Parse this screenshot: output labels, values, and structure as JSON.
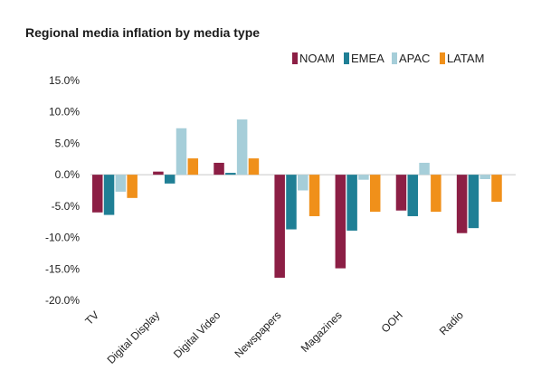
{
  "chart_data": {
    "type": "bar",
    "title": "Regional media inflation by media type",
    "categories": [
      "TV",
      "Digital Display",
      "Digital Video",
      "Newspapers",
      "Magazines",
      "OOH",
      "Radio"
    ],
    "series": [
      {
        "name": "NOAM",
        "color": "#8c1f45",
        "values": [
          -6.0,
          0.5,
          1.9,
          -16.4,
          -14.9,
          -5.7,
          -9.3
        ]
      },
      {
        "name": "EMEA",
        "color": "#1f7f95",
        "values": [
          -6.4,
          -1.4,
          0.3,
          -8.7,
          -8.9,
          -6.6,
          -8.5
        ]
      },
      {
        "name": "APAC",
        "color": "#a6ced9",
        "values": [
          -2.7,
          7.4,
          8.8,
          -2.5,
          -0.8,
          1.9,
          -0.7
        ]
      },
      {
        "name": "LATAM",
        "color": "#f0901a",
        "values": [
          -3.7,
          2.6,
          2.6,
          -6.6,
          -5.9,
          -5.9,
          -4.3
        ]
      }
    ],
    "yticks": [
      "15.0%",
      "10.0%",
      "5.0%",
      "0.0%",
      "-5.0%",
      "-10.0%",
      "-15.0%",
      "-20.0%"
    ],
    "ylim": [
      -20,
      15
    ],
    "grid": false,
    "legend_position": "top-right",
    "xlabel": "",
    "ylabel": ""
  }
}
